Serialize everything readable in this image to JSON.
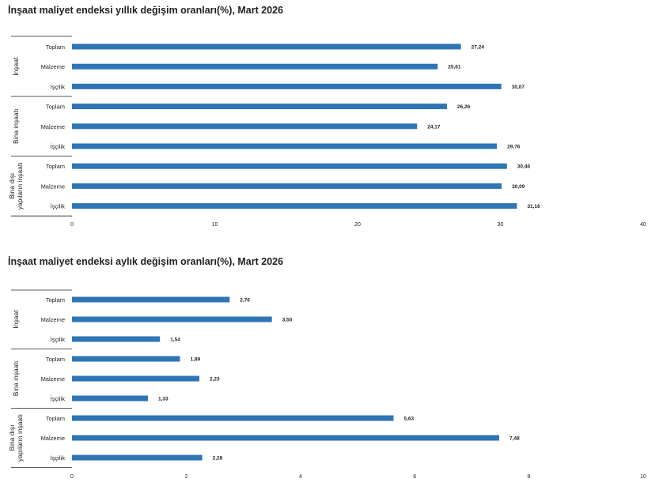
{
  "colors": {
    "bar": "#2e75b6",
    "text": "#222222",
    "rule": "#222222",
    "grid": "#bbbbbb"
  },
  "chart_data": [
    {
      "type": "bar",
      "orientation": "horizontal",
      "title": "İnşaat maliyet endeksi yıllık değişim oranları(%), Mart 2026",
      "groups": [
        {
          "name": "İnşaat",
          "label_lines": [
            "İnşaat"
          ],
          "categories": [
            "Toplam",
            "Malzeme",
            "İşçilik"
          ],
          "values": [
            27.24,
            25.61,
            30.07
          ],
          "value_labels": [
            "27,24",
            "25,61",
            "30,07"
          ]
        },
        {
          "name": "Bina inşaatı",
          "label_lines": [
            "Bina inşaatı"
          ],
          "categories": [
            "Toplam",
            "Malzeme",
            "İşçilik"
          ],
          "values": [
            26.26,
            24.17,
            29.76
          ],
          "value_labels": [
            "26,26",
            "24,17",
            "29,76"
          ]
        },
        {
          "name": "Bina dışı yapıların inşaatı",
          "label_lines": [
            "Bina dışı",
            "yapıların inşaatı"
          ],
          "categories": [
            "Toplam",
            "Malzeme",
            "İşçilik"
          ],
          "values": [
            30.46,
            30.09,
            31.16
          ],
          "value_labels": [
            "30,46",
            "30,09",
            "31,16"
          ]
        }
      ],
      "xlim": [
        0,
        40
      ],
      "xticks": [
        0,
        10,
        20,
        30,
        40
      ],
      "xtick_labels": [
        "0",
        "10",
        "20",
        "30",
        "40"
      ],
      "legend": "none",
      "grid": false
    },
    {
      "type": "bar",
      "orientation": "horizontal",
      "title": "İnşaat maliyet endeksi aylık değişim oranları(%), Mart 2026",
      "groups": [
        {
          "name": "İnşaat",
          "label_lines": [
            "İnşaat"
          ],
          "categories": [
            "Toplam",
            "Malzeme",
            "İşçilik"
          ],
          "values": [
            2.76,
            3.5,
            1.54
          ],
          "value_labels": [
            "2,76",
            "3,50",
            "1,54"
          ]
        },
        {
          "name": "Bina inşaatı",
          "label_lines": [
            "Bina inşaatı"
          ],
          "categories": [
            "Toplam",
            "Malzeme",
            "İşçilik"
          ],
          "values": [
            1.89,
            2.23,
            1.33
          ],
          "value_labels": [
            "1,89",
            "2,23",
            "1,33"
          ]
        },
        {
          "name": "Bina dışı yapıların inşaatı",
          "label_lines": [
            "Bina dışı",
            "yapıların inşaatı"
          ],
          "categories": [
            "Toplam",
            "Malzeme",
            "İşçilik"
          ],
          "values": [
            5.63,
            7.48,
            2.28
          ],
          "value_labels": [
            "5,63",
            "7,48",
            "2,28"
          ]
        }
      ],
      "xlim": [
        0,
        10
      ],
      "xticks": [
        0,
        2,
        4,
        6,
        8,
        10
      ],
      "xtick_labels": [
        "0",
        "2",
        "4",
        "6",
        "8",
        "10"
      ],
      "legend": "none",
      "grid": false
    }
  ]
}
